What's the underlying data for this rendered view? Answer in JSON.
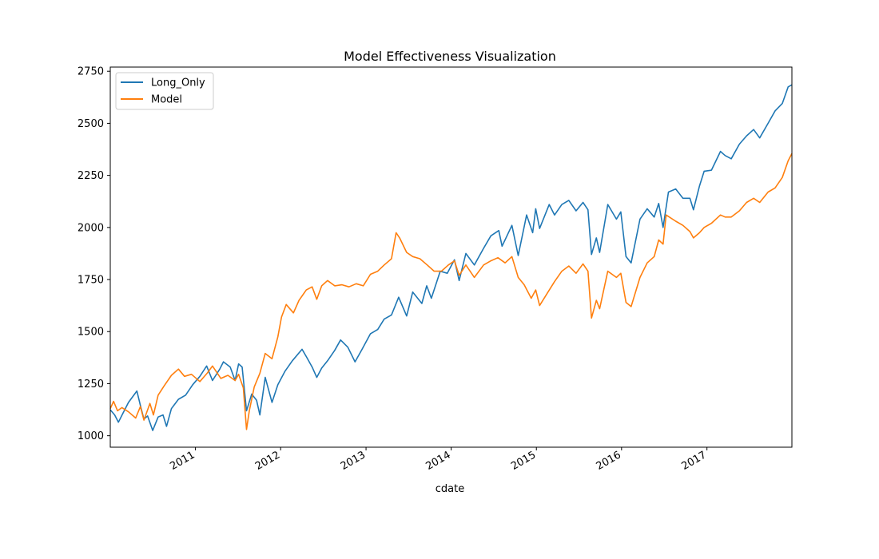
{
  "chart_data": {
    "type": "line",
    "title": "Model Effectiveness Visualization",
    "xlabel": "cdate",
    "ylabel": "",
    "xlim": [
      "2010-01-01",
      "2017-12-31"
    ],
    "ylim": [
      945,
      2770
    ],
    "x_ticks": [
      {
        "date": "2011-01-01",
        "label": "2011"
      },
      {
        "date": "2012-01-01",
        "label": "2012"
      },
      {
        "date": "2013-01-01",
        "label": "2013"
      },
      {
        "date": "2014-01-01",
        "label": "2014"
      },
      {
        "date": "2015-01-01",
        "label": "2015"
      },
      {
        "date": "2016-01-01",
        "label": "2016"
      },
      {
        "date": "2017-01-01",
        "label": "2017"
      }
    ],
    "y_ticks": [
      1000,
      1250,
      1500,
      1750,
      2000,
      2250,
      2500,
      2750
    ],
    "grid": false,
    "legend_position": "top-left",
    "series": [
      {
        "name": "Long_Only",
        "color": "#1f77b4",
        "points": [
          [
            "2010-01-01",
            1125
          ],
          [
            "2010-01-20",
            1100
          ],
          [
            "2010-02-05",
            1065
          ],
          [
            "2010-02-25",
            1110
          ],
          [
            "2010-03-20",
            1160
          ],
          [
            "2010-04-25",
            1215
          ],
          [
            "2010-05-10",
            1145
          ],
          [
            "2010-05-25",
            1080
          ],
          [
            "2010-06-10",
            1095
          ],
          [
            "2010-07-02",
            1025
          ],
          [
            "2010-07-25",
            1090
          ],
          [
            "2010-08-15",
            1100
          ],
          [
            "2010-08-30",
            1045
          ],
          [
            "2010-09-20",
            1130
          ],
          [
            "2010-10-20",
            1175
          ],
          [
            "2010-11-20",
            1195
          ],
          [
            "2010-12-20",
            1245
          ],
          [
            "2011-01-20",
            1285
          ],
          [
            "2011-02-18",
            1335
          ],
          [
            "2011-03-15",
            1265
          ],
          [
            "2011-04-15",
            1320
          ],
          [
            "2011-05-01",
            1355
          ],
          [
            "2011-05-30",
            1330
          ],
          [
            "2011-06-20",
            1265
          ],
          [
            "2011-07-05",
            1345
          ],
          [
            "2011-07-20",
            1330
          ],
          [
            "2011-08-08",
            1120
          ],
          [
            "2011-08-30",
            1200
          ],
          [
            "2011-09-20",
            1170
          ],
          [
            "2011-10-04",
            1100
          ],
          [
            "2011-10-27",
            1280
          ],
          [
            "2011-11-25",
            1160
          ],
          [
            "2011-12-20",
            1245
          ],
          [
            "2012-01-20",
            1310
          ],
          [
            "2012-02-20",
            1360
          ],
          [
            "2012-04-02",
            1415
          ],
          [
            "2012-04-20",
            1380
          ],
          [
            "2012-05-15",
            1330
          ],
          [
            "2012-06-04",
            1280
          ],
          [
            "2012-06-25",
            1325
          ],
          [
            "2012-07-20",
            1360
          ],
          [
            "2012-08-20",
            1410
          ],
          [
            "2012-09-14",
            1460
          ],
          [
            "2012-10-15",
            1425
          ],
          [
            "2012-11-15",
            1355
          ],
          [
            "2012-12-15",
            1415
          ],
          [
            "2013-01-20",
            1490
          ],
          [
            "2013-02-20",
            1510
          ],
          [
            "2013-03-20",
            1560
          ],
          [
            "2013-04-20",
            1580
          ],
          [
            "2013-05-21",
            1665
          ],
          [
            "2013-06-24",
            1575
          ],
          [
            "2013-07-20",
            1690
          ],
          [
            "2013-08-28",
            1635
          ],
          [
            "2013-09-18",
            1720
          ],
          [
            "2013-10-08",
            1660
          ],
          [
            "2013-11-15",
            1790
          ],
          [
            "2013-12-15",
            1780
          ],
          [
            "2014-01-15",
            1845
          ],
          [
            "2014-02-04",
            1745
          ],
          [
            "2014-03-05",
            1875
          ],
          [
            "2014-04-10",
            1820
          ],
          [
            "2014-05-20",
            1900
          ],
          [
            "2014-06-20",
            1960
          ],
          [
            "2014-07-24",
            1985
          ],
          [
            "2014-08-07",
            1910
          ],
          [
            "2014-09-18",
            2010
          ],
          [
            "2014-10-15",
            1865
          ],
          [
            "2014-11-20",
            2060
          ],
          [
            "2014-12-16",
            1975
          ],
          [
            "2014-12-29",
            2090
          ],
          [
            "2015-01-15",
            1995
          ],
          [
            "2015-02-25",
            2110
          ],
          [
            "2015-03-20",
            2060
          ],
          [
            "2015-04-20",
            2110
          ],
          [
            "2015-05-20",
            2130
          ],
          [
            "2015-06-20",
            2080
          ],
          [
            "2015-07-20",
            2120
          ],
          [
            "2015-08-10",
            2085
          ],
          [
            "2015-08-25",
            1870
          ],
          [
            "2015-09-15",
            1950
          ],
          [
            "2015-09-29",
            1880
          ],
          [
            "2015-11-03",
            2110
          ],
          [
            "2015-12-10",
            2040
          ],
          [
            "2015-12-29",
            2075
          ],
          [
            "2016-01-20",
            1860
          ],
          [
            "2016-02-11",
            1830
          ],
          [
            "2016-03-20",
            2040
          ],
          [
            "2016-04-20",
            2090
          ],
          [
            "2016-05-20",
            2050
          ],
          [
            "2016-06-08",
            2115
          ],
          [
            "2016-06-27",
            2000
          ],
          [
            "2016-07-20",
            2170
          ],
          [
            "2016-08-20",
            2185
          ],
          [
            "2016-09-20",
            2140
          ],
          [
            "2016-10-20",
            2140
          ],
          [
            "2016-11-04",
            2085
          ],
          [
            "2016-11-30",
            2200
          ],
          [
            "2016-12-20",
            2270
          ],
          [
            "2017-01-20",
            2275
          ],
          [
            "2017-02-28",
            2365
          ],
          [
            "2017-03-20",
            2345
          ],
          [
            "2017-04-15",
            2330
          ],
          [
            "2017-05-20",
            2400
          ],
          [
            "2017-06-20",
            2440
          ],
          [
            "2017-07-20",
            2470
          ],
          [
            "2017-08-15",
            2430
          ],
          [
            "2017-09-20",
            2500
          ],
          [
            "2017-10-20",
            2560
          ],
          [
            "2017-11-20",
            2595
          ],
          [
            "2017-12-15",
            2675
          ],
          [
            "2017-12-31",
            2685
          ]
        ]
      },
      {
        "name": "Model",
        "color": "#ff7f0e",
        "points": [
          [
            "2010-01-01",
            1130
          ],
          [
            "2010-01-15",
            1165
          ],
          [
            "2010-02-01",
            1120
          ],
          [
            "2010-02-20",
            1135
          ],
          [
            "2010-03-20",
            1115
          ],
          [
            "2010-04-20",
            1085
          ],
          [
            "2010-05-10",
            1140
          ],
          [
            "2010-05-25",
            1075
          ],
          [
            "2010-06-20",
            1155
          ],
          [
            "2010-07-05",
            1100
          ],
          [
            "2010-07-25",
            1195
          ],
          [
            "2010-08-20",
            1240
          ],
          [
            "2010-09-20",
            1290
          ],
          [
            "2010-10-20",
            1320
          ],
          [
            "2010-11-15",
            1285
          ],
          [
            "2010-12-15",
            1295
          ],
          [
            "2011-01-20",
            1260
          ],
          [
            "2011-02-20",
            1300
          ],
          [
            "2011-03-15",
            1335
          ],
          [
            "2011-04-20",
            1275
          ],
          [
            "2011-05-20",
            1290
          ],
          [
            "2011-06-20",
            1265
          ],
          [
            "2011-07-05",
            1295
          ],
          [
            "2011-07-25",
            1230
          ],
          [
            "2011-08-08",
            1030
          ],
          [
            "2011-08-20",
            1120
          ],
          [
            "2011-09-10",
            1235
          ],
          [
            "2011-10-04",
            1300
          ],
          [
            "2011-10-27",
            1395
          ],
          [
            "2011-11-25",
            1370
          ],
          [
            "2011-12-20",
            1475
          ],
          [
            "2012-01-05",
            1570
          ],
          [
            "2012-01-25",
            1630
          ],
          [
            "2012-02-25",
            1590
          ],
          [
            "2012-03-20",
            1650
          ],
          [
            "2012-04-20",
            1700
          ],
          [
            "2012-05-15",
            1715
          ],
          [
            "2012-06-04",
            1655
          ],
          [
            "2012-06-25",
            1720
          ],
          [
            "2012-07-20",
            1745
          ],
          [
            "2012-08-20",
            1720
          ],
          [
            "2012-09-20",
            1725
          ],
          [
            "2012-10-20",
            1715
          ],
          [
            "2012-11-20",
            1730
          ],
          [
            "2012-12-20",
            1720
          ],
          [
            "2013-01-20",
            1775
          ],
          [
            "2013-02-20",
            1790
          ],
          [
            "2013-03-20",
            1820
          ],
          [
            "2013-04-20",
            1850
          ],
          [
            "2013-05-10",
            1975
          ],
          [
            "2013-05-25",
            1950
          ],
          [
            "2013-06-24",
            1880
          ],
          [
            "2013-07-20",
            1860
          ],
          [
            "2013-08-20",
            1850
          ],
          [
            "2013-09-20",
            1820
          ],
          [
            "2013-10-20",
            1790
          ],
          [
            "2013-11-20",
            1790
          ],
          [
            "2013-12-20",
            1820
          ],
          [
            "2014-01-15",
            1840
          ],
          [
            "2014-02-04",
            1770
          ],
          [
            "2014-03-05",
            1820
          ],
          [
            "2014-04-10",
            1760
          ],
          [
            "2014-05-20",
            1820
          ],
          [
            "2014-06-20",
            1840
          ],
          [
            "2014-07-20",
            1855
          ],
          [
            "2014-08-20",
            1830
          ],
          [
            "2014-09-18",
            1860
          ],
          [
            "2014-10-15",
            1760
          ],
          [
            "2014-11-10",
            1725
          ],
          [
            "2014-12-10",
            1660
          ],
          [
            "2014-12-29",
            1700
          ],
          [
            "2015-01-15",
            1625
          ],
          [
            "2015-02-20",
            1690
          ],
          [
            "2015-03-20",
            1740
          ],
          [
            "2015-04-20",
            1790
          ],
          [
            "2015-05-20",
            1815
          ],
          [
            "2015-06-20",
            1780
          ],
          [
            "2015-07-20",
            1825
          ],
          [
            "2015-08-10",
            1790
          ],
          [
            "2015-08-25",
            1565
          ],
          [
            "2015-09-15",
            1650
          ],
          [
            "2015-09-29",
            1610
          ],
          [
            "2015-11-03",
            1790
          ],
          [
            "2015-12-10",
            1760
          ],
          [
            "2015-12-29",
            1780
          ],
          [
            "2016-01-20",
            1640
          ],
          [
            "2016-02-11",
            1620
          ],
          [
            "2016-03-20",
            1760
          ],
          [
            "2016-04-20",
            1830
          ],
          [
            "2016-05-20",
            1860
          ],
          [
            "2016-06-08",
            1940
          ],
          [
            "2016-06-27",
            1920
          ],
          [
            "2016-07-10",
            2060
          ],
          [
            "2016-08-20",
            2030
          ],
          [
            "2016-09-20",
            2010
          ],
          [
            "2016-10-20",
            1980
          ],
          [
            "2016-11-04",
            1950
          ],
          [
            "2016-11-30",
            1975
          ],
          [
            "2016-12-20",
            2000
          ],
          [
            "2017-01-20",
            2020
          ],
          [
            "2017-02-28",
            2060
          ],
          [
            "2017-03-20",
            2050
          ],
          [
            "2017-04-15",
            2050
          ],
          [
            "2017-05-20",
            2080
          ],
          [
            "2017-06-20",
            2120
          ],
          [
            "2017-07-20",
            2140
          ],
          [
            "2017-08-15",
            2120
          ],
          [
            "2017-09-20",
            2170
          ],
          [
            "2017-10-20",
            2190
          ],
          [
            "2017-11-20",
            2240
          ],
          [
            "2017-12-15",
            2320
          ],
          [
            "2017-12-31",
            2355
          ]
        ]
      }
    ]
  }
}
